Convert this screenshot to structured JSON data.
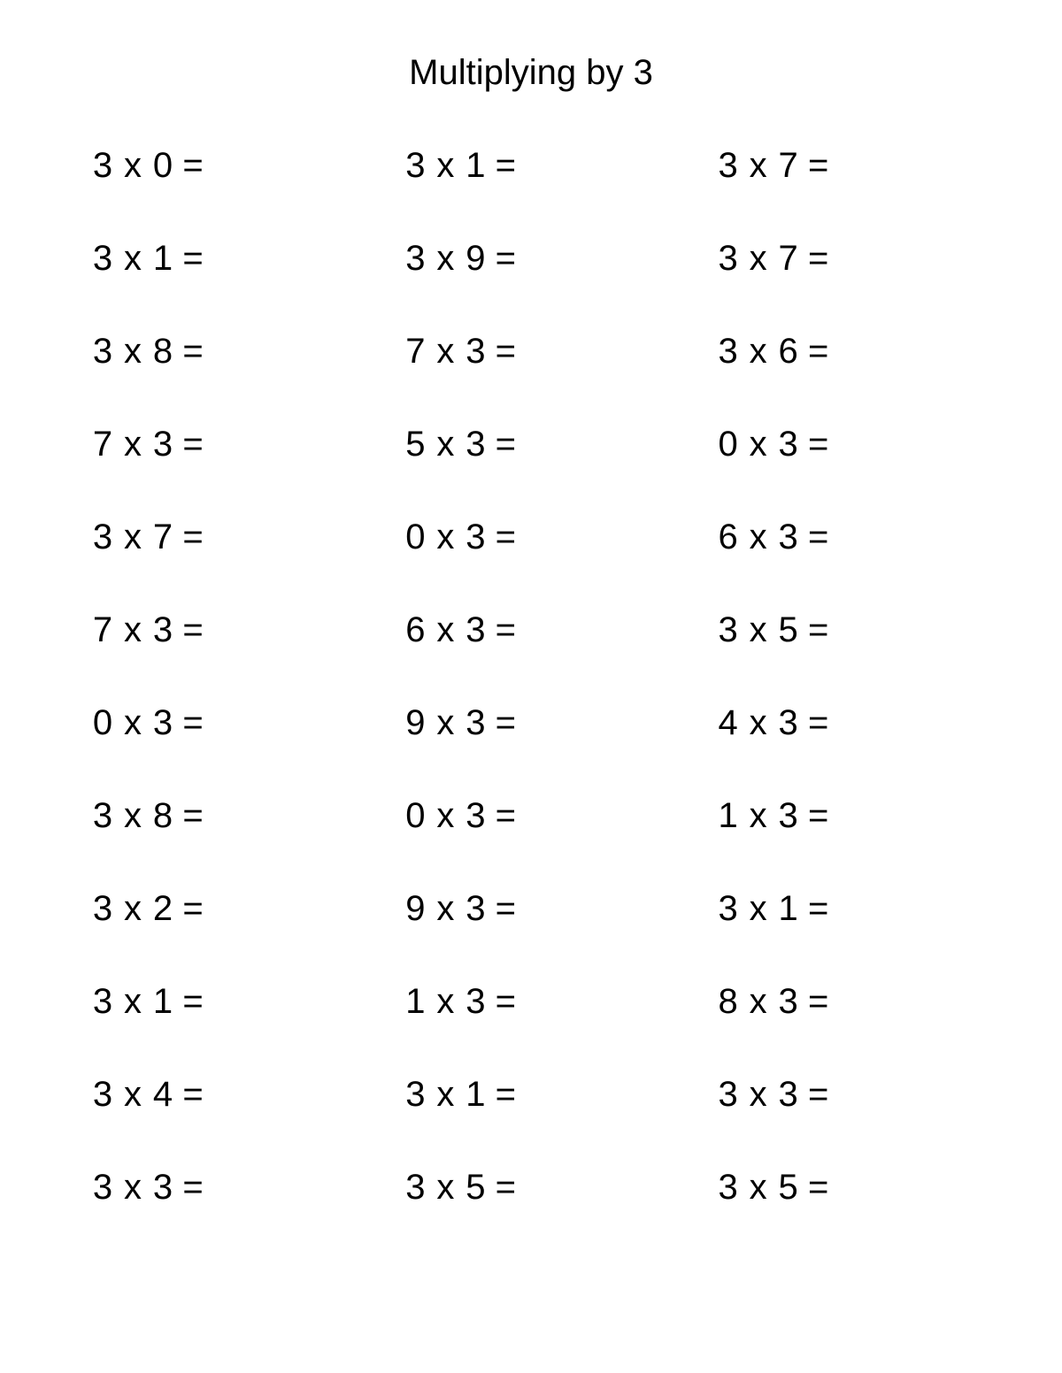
{
  "title": "Multiplying by 3",
  "style": {
    "background_color": "#ffffff",
    "text_color": "#000000",
    "font_family": "Arial, Helvetica, sans-serif",
    "title_fontsize": 40,
    "problem_fontsize": 40,
    "columns": 3,
    "rows": 12
  },
  "operator": "x",
  "equals": "=",
  "problems": [
    {
      "a": "3",
      "b": "0"
    },
    {
      "a": "3",
      "b": "1"
    },
    {
      "a": "3",
      "b": "7"
    },
    {
      "a": "3",
      "b": "1"
    },
    {
      "a": "3",
      "b": "9"
    },
    {
      "a": "3",
      "b": "7"
    },
    {
      "a": "3",
      "b": "8"
    },
    {
      "a": "7",
      "b": "3"
    },
    {
      "a": "3",
      "b": "6"
    },
    {
      "a": "7",
      "b": "3"
    },
    {
      "a": "5",
      "b": "3"
    },
    {
      "a": "0",
      "b": "3"
    },
    {
      "a": "3",
      "b": "7"
    },
    {
      "a": "0",
      "b": "3"
    },
    {
      "a": "6",
      "b": "3"
    },
    {
      "a": "7",
      "b": "3"
    },
    {
      "a": "6",
      "b": "3"
    },
    {
      "a": "3",
      "b": "5"
    },
    {
      "a": "0",
      "b": "3"
    },
    {
      "a": "9",
      "b": "3"
    },
    {
      "a": "4",
      "b": "3"
    },
    {
      "a": "3",
      "b": "8"
    },
    {
      "a": "0",
      "b": "3"
    },
    {
      "a": "1",
      "b": "3"
    },
    {
      "a": "3",
      "b": "2"
    },
    {
      "a": "9",
      "b": "3"
    },
    {
      "a": "3",
      "b": "1"
    },
    {
      "a": "3",
      "b": "1"
    },
    {
      "a": "1",
      "b": "3"
    },
    {
      "a": "8",
      "b": "3"
    },
    {
      "a": "3",
      "b": "4"
    },
    {
      "a": "3",
      "b": "1"
    },
    {
      "a": "3",
      "b": "3"
    },
    {
      "a": "3",
      "b": "3"
    },
    {
      "a": "3",
      "b": "5"
    },
    {
      "a": "3",
      "b": "5"
    }
  ]
}
